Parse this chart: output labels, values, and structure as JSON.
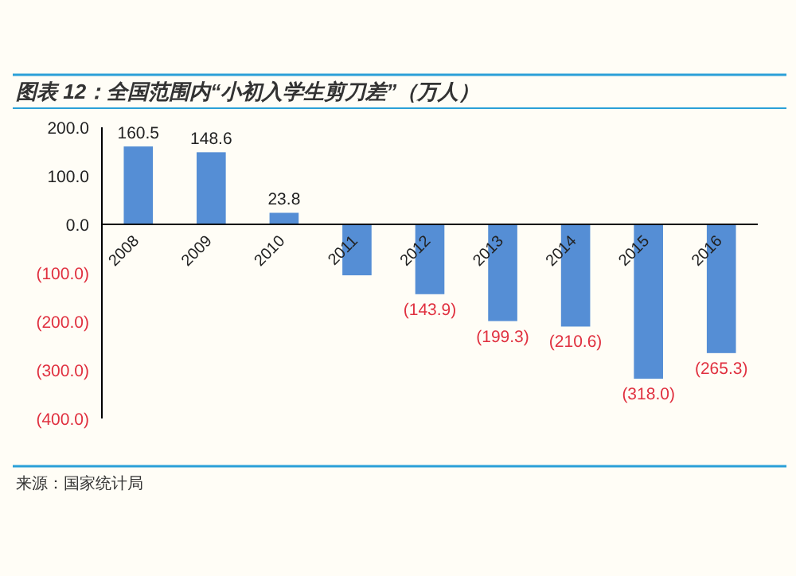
{
  "chart_data": {
    "type": "bar",
    "title": "图表 12：全国范围内“小初入学生剪刀差”（万人）",
    "categories": [
      "2008",
      "2009",
      "2010",
      "2011",
      "2012",
      "2013",
      "2014",
      "2015",
      "2016"
    ],
    "values": [
      160.5,
      148.6,
      23.8,
      -105,
      -143.9,
      -199.3,
      -210.6,
      -318.0,
      -265.3
    ],
    "value_labels": [
      "160.5",
      "148.6",
      "23.8",
      null,
      "(143.9)",
      "(199.3)",
      "(210.6)",
      "(318.0)",
      "(265.3)"
    ],
    "color": "#558ed5",
    "ylim": [
      -400,
      200
    ],
    "yticks": [
      {
        "value": 200,
        "label": "200.0"
      },
      {
        "value": 100,
        "label": "100.0"
      },
      {
        "value": 0,
        "label": "0.0"
      },
      {
        "value": -100,
        "label": "(100.0)"
      },
      {
        "value": -200,
        "label": "(200.0)"
      },
      {
        "value": -300,
        "label": "(300.0)"
      },
      {
        "value": -400,
        "label": "(400.0)"
      }
    ],
    "grid": false,
    "annotations": [
      "来源：国家统计局"
    ]
  }
}
